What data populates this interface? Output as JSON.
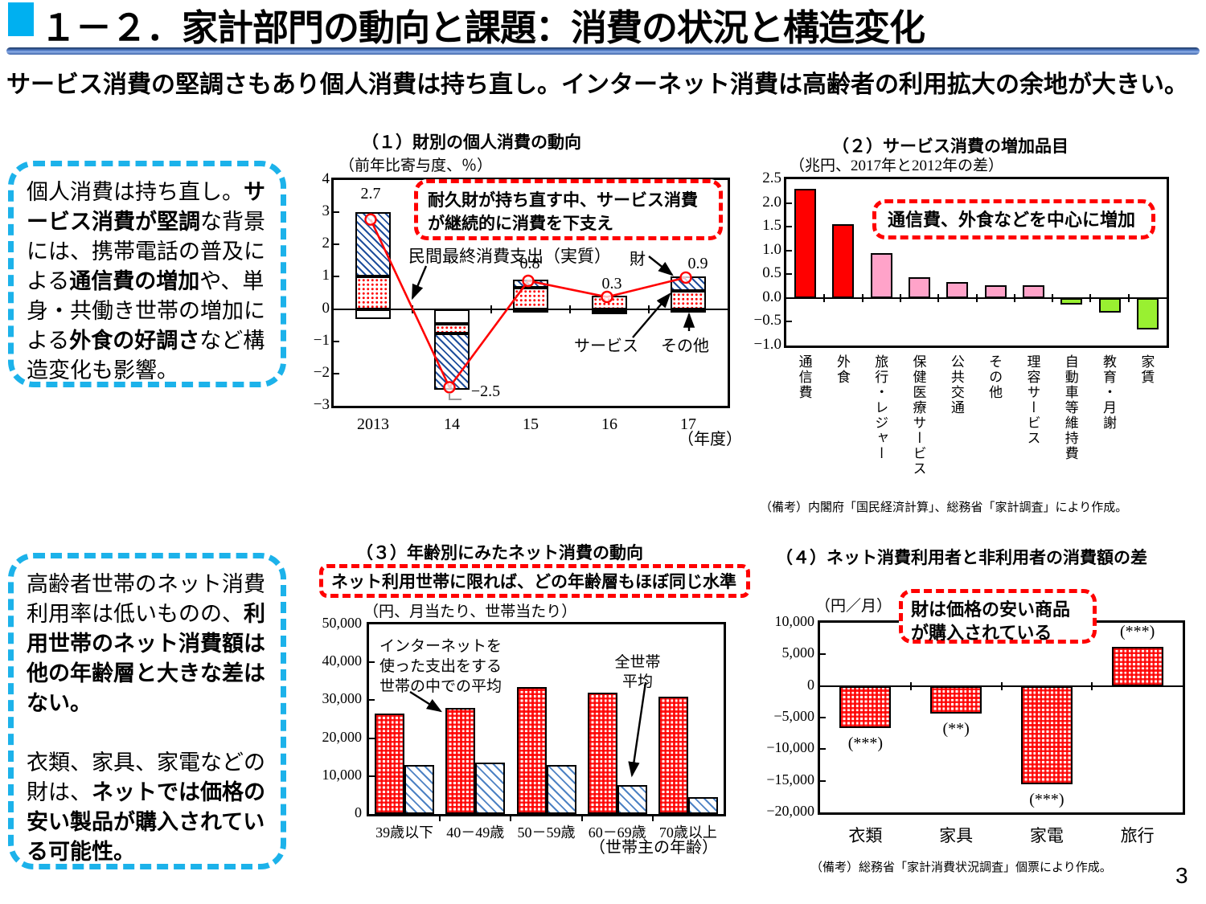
{
  "page": {
    "title": "１－２．家計部門の動向と課題：消費の状況と構造変化",
    "subtitle": "サービス消費の堅調さもあり個人消費は持ち直し。インターネット消費は高齢者の利用拡大の余地が大きい。",
    "page_number": "3"
  },
  "accent_colors": {
    "title_square": "#00B0F0",
    "title_rule": "#4472C4",
    "message_box_border": "#1CB2EA",
    "annotation_border": "#FF0000",
    "bar_red": "#FF0000",
    "bar_pink": "#FFA3C9",
    "bar_green": "#99F031",
    "hatch_blue": "#1F4E9C",
    "line_red": "#FF0000"
  },
  "message_boxes": {
    "top": {
      "segments": [
        {
          "text": "個人消費は持ち直し。",
          "bold": false
        },
        {
          "text": "サービス消費が堅調",
          "bold": true
        },
        {
          "text": "な背景には、携帯電話の普及による",
          "bold": false
        },
        {
          "text": "通信費の増加",
          "bold": true
        },
        {
          "text": "や、単身・共働き世帯の増加による",
          "bold": false
        },
        {
          "text": "外食の好調さ",
          "bold": true
        },
        {
          "text": "など構造変化も影響。",
          "bold": false
        }
      ]
    },
    "bottom": {
      "paragraphs": [
        [
          {
            "text": "高齢者世帯のネット消費利用率は低いものの、",
            "bold": false
          },
          {
            "text": "利用世帯のネット消費額は他の年齢層と大きな差はない。",
            "bold": true
          }
        ],
        [
          {
            "text": "衣類、家具、家電などの財は、",
            "bold": false
          },
          {
            "text": "ネットでは価格の安い製品が購入されている可能性。",
            "bold": true
          }
        ]
      ]
    }
  },
  "chart_data": [
    {
      "id": "personal-consumption-by-goods-type",
      "type": "stacked-bar-line",
      "title": "（１）財別の個人消費の動向",
      "unit_label": "（前年比寄与度、％）",
      "annotation": "耐久財が持ち直す中、サービス消費が継続的に消費を下支え",
      "categories": [
        "2013",
        "14",
        "15",
        "16",
        "17"
      ],
      "x_axis_suffix": "（年度）",
      "ylim": [
        -3,
        4
      ],
      "yticks": [
        "4",
        "3",
        "2",
        "1",
        "0",
        "−1",
        "−2",
        "−3"
      ],
      "series_names": {
        "goods": "財",
        "services": "サービス",
        "other": "その他"
      },
      "line": {
        "name": "民間最終消費支出（実質）",
        "values": [
          2.7,
          -2.5,
          0.8,
          0.3,
          0.9
        ]
      },
      "point_labels": [
        "2.7",
        "−2.5",
        "0.8",
        "0.3",
        "0.9"
      ],
      "bars": [
        {
          "category": "2013",
          "pos": [
            {
              "name": "サービス",
              "value": 1.0
            },
            {
              "name": "財",
              "value": 2.0
            }
          ],
          "neg": [
            {
              "name": "その他",
              "value": -0.3
            }
          ]
        },
        {
          "category": "14",
          "pos": [],
          "neg": [
            {
              "name": "その他",
              "value": -0.45
            },
            {
              "name": "サービス",
              "value": -0.3
            },
            {
              "name": "財",
              "value": -1.75
            }
          ]
        },
        {
          "category": "15",
          "pos": [
            {
              "name": "サービス",
              "value": 0.67
            },
            {
              "name": "財",
              "value": 0.25
            }
          ],
          "neg": [
            {
              "name": "その他",
              "value": -0.12
            }
          ]
        },
        {
          "category": "16",
          "pos": [
            {
              "name": "サービス",
              "value": 0.42
            }
          ],
          "neg": [
            {
              "name": "その他",
              "value": -0.06
            },
            {
              "name": "財",
              "value": -0.06
            }
          ]
        },
        {
          "category": "17",
          "pos": [
            {
              "name": "サービス",
              "value": 0.55
            },
            {
              "name": "財",
              "value": 0.45
            }
          ],
          "neg": [
            {
              "name": "その他",
              "value": -0.1
            }
          ]
        }
      ]
    },
    {
      "id": "service-consumption-increased-items",
      "type": "bar",
      "title": "（２）サービス消費の増加品目",
      "unit_label": "（兆円、2017年と2012年の差）",
      "annotation": "通信費、外食などを中心に増加",
      "categories": [
        "通信費",
        "外食",
        "旅行・レジャー",
        "保健医療サービス",
        "公共交通",
        "その他",
        "理容サービス",
        "自動車等維持費",
        "教育・月謝",
        "家賃"
      ],
      "values": [
        2.3,
        1.55,
        0.95,
        0.43,
        0.34,
        0.27,
        0.27,
        -0.14,
        -0.3,
        -0.67
      ],
      "bar_colors": [
        "#FF0000",
        "#FF0000",
        "#FFA3C9",
        "#FFA3C9",
        "#FFA3C9",
        "#FFA3C9",
        "#FFA3C9",
        "#99F031",
        "#99F031",
        "#99F031"
      ],
      "ylim": [
        -1.0,
        2.5
      ],
      "yticks": [
        "2.5",
        "2.0",
        "1.5",
        "1.0",
        "0.5",
        "0.0",
        "−0.5",
        "−1.0"
      ],
      "note": "（備考）内閣府「国民経済計算」、総務省「家計調査」により作成。"
    },
    {
      "id": "net-consumption-by-age",
      "type": "grouped-bar",
      "title": "（３）年齢別にみたネット消費の動向",
      "unit_label": "（円、月当たり、世帯当たり）",
      "annotation": "ネット利用世帯に限れば、どの年齢層もほぼ同じ水準",
      "categories": [
        "39歳以下",
        "40－49歳",
        "50－59歳",
        "60－69歳",
        "70歳以上"
      ],
      "x_axis_suffix": "（世帯主の年齢）",
      "ylim": [
        0,
        50000
      ],
      "yticks": [
        "50,000",
        "40,000",
        "30,000",
        "20,000",
        "10,000",
        "0"
      ],
      "series": [
        {
          "name": "インターネットを使った支出をする世帯の中での平均",
          "values": [
            26500,
            28000,
            33500,
            32000,
            31000
          ]
        },
        {
          "name": "全世帯平均",
          "values": [
            13000,
            13500,
            13000,
            7600,
            4500
          ]
        }
      ]
    },
    {
      "id": "net-user-vs-nonuser-spending-gap",
      "type": "bar",
      "title": "（４）ネット消費利用者と非利用者の消費額の差",
      "unit_label": "（円／月）",
      "annotation": "財は価格の安い商品が購入されている",
      "categories": [
        "衣類",
        "家具",
        "家電",
        "旅行"
      ],
      "values": [
        -6700,
        -4400,
        -15600,
        6200
      ],
      "significance": [
        "(***)",
        "(**)",
        "(***)",
        "(***)"
      ],
      "ylim": [
        -20000,
        10000
      ],
      "yticks": [
        "10,000",
        "5,000",
        "0",
        "−5,000",
        "−10,000",
        "−15,000",
        "−20,000"
      ],
      "note": "（備考）総務省「家計消費状況調査」個票により作成。"
    }
  ]
}
